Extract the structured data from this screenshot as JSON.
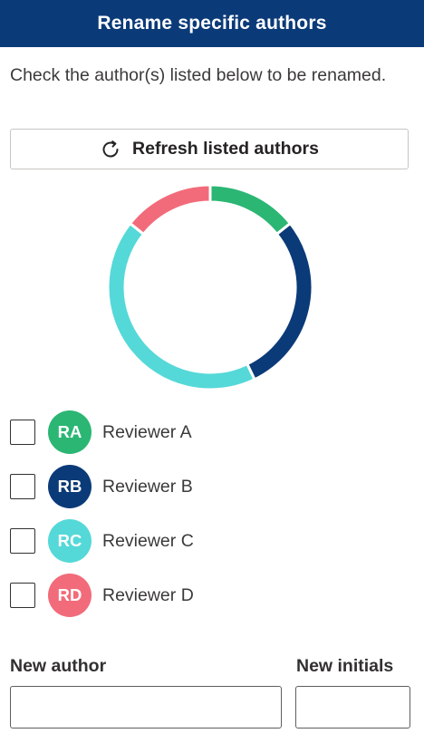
{
  "header": {
    "title": "Rename specific authors"
  },
  "instructions": "Check the author(s) listed below to be renamed.",
  "refresh_button": {
    "label": "Refresh listed authors",
    "icon": "refresh-icon"
  },
  "chart_data": {
    "type": "pie",
    "style": "donut",
    "categories": [
      "Reviewer A",
      "Reviewer B",
      "Reviewer C",
      "Reviewer D"
    ],
    "values": [
      1,
      2,
      3,
      1
    ],
    "colors": [
      "#2bb673",
      "#0b3a78",
      "#55d8d8",
      "#f26b7a"
    ]
  },
  "authors": [
    {
      "initials": "RA",
      "name": "Reviewer A",
      "color": "#2bb673",
      "checked": false
    },
    {
      "initials": "RB",
      "name": "Reviewer B",
      "color": "#0b3a78",
      "checked": false
    },
    {
      "initials": "RC",
      "name": "Reviewer C",
      "color": "#55d8d8",
      "checked": false
    },
    {
      "initials": "RD",
      "name": "Reviewer D",
      "color": "#f26b7a",
      "checked": false
    }
  ],
  "new_author": {
    "label": "New author",
    "value": "",
    "placeholder": ""
  },
  "new_initials": {
    "label": "New initials",
    "value": "",
    "placeholder": ""
  }
}
